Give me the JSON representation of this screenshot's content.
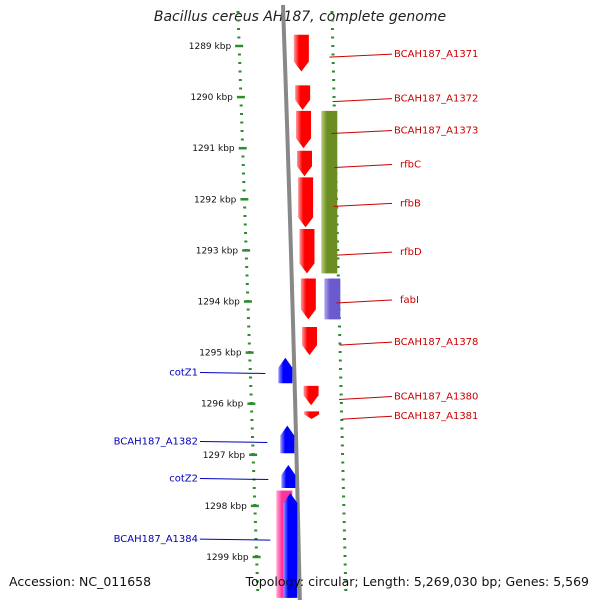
{
  "title": "Bacillus cereus AH187, complete genome",
  "footer": {
    "accession": "Accession: NC_011658",
    "topology": "Topology: circular; Length: 5,269,030 bp; Genes: 5,569"
  },
  "colors": {
    "strand_plus": "#ff0000",
    "strand_minus": "#0000ff",
    "group_green": "#6b8e23",
    "group_purple": "#6a5acd",
    "group_pink": "#ff3399",
    "label_plus": "#cc0000",
    "label_minus": "#0000bb",
    "tick": "#2e8b2e",
    "backbone": "#888888"
  },
  "ruler": {
    "unit": "kbp",
    "ticks": [
      {
        "kbp": 1289,
        "label": "1289 kbp"
      },
      {
        "kbp": 1290,
        "label": "1290 kbp"
      },
      {
        "kbp": 1291,
        "label": "1291 kbp"
      },
      {
        "kbp": 1292,
        "label": "1292 kbp"
      },
      {
        "kbp": 1293,
        "label": "1293 kbp"
      },
      {
        "kbp": 1294,
        "label": "1294 kbp"
      },
      {
        "kbp": 1295,
        "label": "1295 kbp"
      },
      {
        "kbp": 1296,
        "label": "1296 kbp"
      },
      {
        "kbp": 1297,
        "label": "1297 kbp"
      },
      {
        "kbp": 1298,
        "label": "1298 kbp"
      },
      {
        "kbp": 1299,
        "label": "1299 kbp"
      }
    ]
  },
  "genes_plus": [
    {
      "label": "BCAH187_A1371",
      "start": 1288.78,
      "end": 1289.5
    },
    {
      "label": "BCAH187_A1372",
      "start": 1289.77,
      "end": 1290.25
    },
    {
      "label": "BCAH187_A1373",
      "start": 1290.27,
      "end": 1291.0
    },
    {
      "label": "rfbC",
      "start": 1291.05,
      "end": 1291.55
    },
    {
      "label": "rfbB",
      "start": 1291.57,
      "end": 1292.55
    },
    {
      "label": "rfbD",
      "start": 1292.58,
      "end": 1293.45
    },
    {
      "label": "fabI",
      "start": 1293.55,
      "end": 1294.35
    },
    {
      "label": "BCAH187_A1378",
      "start": 1294.5,
      "end": 1295.05
    },
    {
      "label": "BCAH187_A1380",
      "start": 1295.65,
      "end": 1296.03
    },
    {
      "label": "BCAH187_A1381",
      "start": 1296.15,
      "end": 1296.3
    }
  ],
  "genes_minus": [
    {
      "label": "cotZ1",
      "start": 1295.1,
      "end": 1295.6
    },
    {
      "label": "BCAH187_A1382",
      "start": 1296.43,
      "end": 1296.97
    },
    {
      "label": "cotZ2",
      "start": 1297.2,
      "end": 1297.65
    },
    {
      "label": "BCAH187_A1384",
      "start": 1297.75,
      "end": 1299.8
    }
  ],
  "gene_groups": [
    {
      "color": "#6b8e23",
      "strand": "plus",
      "start": 1290.27,
      "end": 1293.45
    },
    {
      "color": "#6a5acd",
      "strand": "plus",
      "start": 1293.55,
      "end": 1294.35
    },
    {
      "color": "#ff3399",
      "strand": "minus",
      "start": 1297.7,
      "end": 1299.8
    }
  ]
}
